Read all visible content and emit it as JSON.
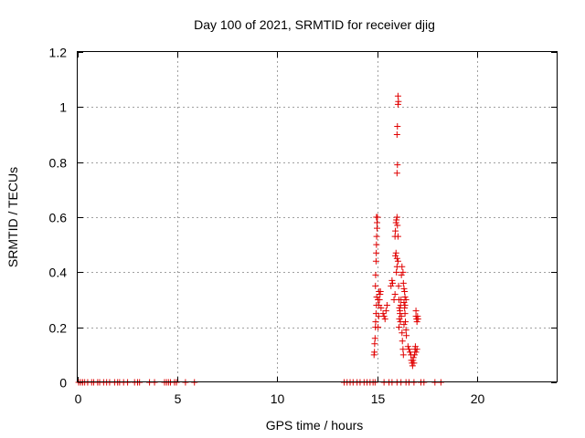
{
  "chart_data": {
    "type": "scatter",
    "title": "Day 100 of 2021, SRMTID for receiver djig",
    "xlabel": "GPS time / hours",
    "ylabel": "SRMTID / TECUs",
    "xlim": [
      0,
      24
    ],
    "ylim": [
      0,
      1.2
    ],
    "xticks": [
      0,
      5,
      10,
      15,
      20
    ],
    "xtick_labels": [
      "0",
      "5",
      "10",
      "15",
      "20"
    ],
    "yticks": [
      0,
      0.2,
      0.4,
      0.6,
      0.8,
      1,
      1.2
    ],
    "ytick_labels": [
      "0",
      "0.2",
      "0.4",
      "0.6",
      "0.8",
      "1",
      "1.2"
    ],
    "grid": true,
    "marker": "plus",
    "color": "#e00000",
    "series": [
      {
        "name": "SRMTID",
        "points": [
          [
            0.05,
            0
          ],
          [
            0.15,
            0
          ],
          [
            0.25,
            0
          ],
          [
            0.35,
            0
          ],
          [
            0.5,
            0
          ],
          [
            0.7,
            0
          ],
          [
            0.8,
            0
          ],
          [
            1.0,
            0
          ],
          [
            1.1,
            0
          ],
          [
            1.3,
            0
          ],
          [
            1.45,
            0
          ],
          [
            1.6,
            0
          ],
          [
            1.85,
            0
          ],
          [
            2.0,
            0
          ],
          [
            2.1,
            0
          ],
          [
            2.3,
            0
          ],
          [
            2.5,
            0
          ],
          [
            2.85,
            0
          ],
          [
            3.0,
            0
          ],
          [
            3.1,
            0
          ],
          [
            3.6,
            0
          ],
          [
            3.85,
            0
          ],
          [
            4.35,
            0
          ],
          [
            4.45,
            0
          ],
          [
            4.55,
            0
          ],
          [
            4.65,
            0
          ],
          [
            4.85,
            0
          ],
          [
            4.95,
            0
          ],
          [
            5.4,
            0
          ],
          [
            5.85,
            0
          ],
          [
            13.35,
            0
          ],
          [
            13.5,
            0
          ],
          [
            13.65,
            0
          ],
          [
            13.8,
            0
          ],
          [
            14.0,
            0
          ],
          [
            14.15,
            0
          ],
          [
            14.35,
            0
          ],
          [
            14.5,
            0
          ],
          [
            14.65,
            0
          ],
          [
            14.8,
            0
          ],
          [
            14.9,
            0
          ],
          [
            15.35,
            0
          ],
          [
            15.6,
            0
          ],
          [
            15.75,
            0
          ],
          [
            16.0,
            0
          ],
          [
            16.2,
            0
          ],
          [
            16.45,
            0
          ],
          [
            16.6,
            0
          ],
          [
            16.85,
            0
          ],
          [
            17.2,
            0
          ],
          [
            17.35,
            0
          ],
          [
            17.9,
            0
          ],
          [
            18.2,
            0
          ],
          [
            14.85,
            0.1
          ],
          [
            14.87,
            0.11
          ],
          [
            14.88,
            0.14
          ],
          [
            14.9,
            0.16
          ],
          [
            14.92,
            0.2
          ],
          [
            14.93,
            0.22
          ],
          [
            14.95,
            0.25
          ],
          [
            14.97,
            0.28
          ],
          [
            14.98,
            0.31
          ],
          [
            14.92,
            0.35
          ],
          [
            14.93,
            0.39
          ],
          [
            14.95,
            0.44
          ],
          [
            14.96,
            0.47
          ],
          [
            14.97,
            0.5
          ],
          [
            14.98,
            0.53
          ],
          [
            15.0,
            0.56
          ],
          [
            15.0,
            0.58
          ],
          [
            15.02,
            0.6
          ],
          [
            14.97,
            0.6
          ],
          [
            15.05,
            0.2
          ],
          [
            15.08,
            0.24
          ],
          [
            15.1,
            0.28
          ],
          [
            15.12,
            0.3
          ],
          [
            15.15,
            0.32
          ],
          [
            15.17,
            0.33
          ],
          [
            15.05,
            0.3
          ],
          [
            15.1,
            0.33
          ],
          [
            15.2,
            0.27
          ],
          [
            15.3,
            0.25
          ],
          [
            15.35,
            0.24
          ],
          [
            15.4,
            0.23
          ],
          [
            15.45,
            0.26
          ],
          [
            15.5,
            0.28
          ],
          [
            15.7,
            0.35
          ],
          [
            15.75,
            0.37
          ],
          [
            15.78,
            0.36
          ],
          [
            15.85,
            0.3
          ],
          [
            15.9,
            0.32
          ],
          [
            15.92,
            0.46
          ],
          [
            15.95,
            0.47
          ],
          [
            15.97,
            0.4
          ],
          [
            16.0,
            0.42
          ],
          [
            15.9,
            0.53
          ],
          [
            15.92,
            0.55
          ],
          [
            15.95,
            0.58
          ],
          [
            15.97,
            0.59
          ],
          [
            16.0,
            0.6
          ],
          [
            16.02,
            0.57
          ],
          [
            16.05,
            0.53
          ],
          [
            16.0,
            0.76
          ],
          [
            16.02,
            0.79
          ],
          [
            16.0,
            0.9
          ],
          [
            16.02,
            0.93
          ],
          [
            16.05,
            1.01
          ],
          [
            16.07,
            1.02
          ],
          [
            16.05,
            1.04
          ],
          [
            16.0,
            0.45
          ],
          [
            16.05,
            0.44
          ],
          [
            16.08,
            0.35
          ],
          [
            16.1,
            0.3
          ],
          [
            16.12,
            0.27
          ],
          [
            16.15,
            0.25
          ],
          [
            16.17,
            0.22
          ],
          [
            16.1,
            0.2
          ],
          [
            16.12,
            0.23
          ],
          [
            16.15,
            0.26
          ],
          [
            16.18,
            0.28
          ],
          [
            16.2,
            0.3
          ],
          [
            16.22,
            0.24
          ],
          [
            16.25,
            0.18
          ],
          [
            16.27,
            0.15
          ],
          [
            16.3,
            0.12
          ],
          [
            16.32,
            0.1
          ],
          [
            16.22,
            0.39
          ],
          [
            16.25,
            0.42
          ],
          [
            16.3,
            0.4
          ],
          [
            16.32,
            0.36
          ],
          [
            16.35,
            0.34
          ],
          [
            16.38,
            0.33
          ],
          [
            16.4,
            0.31
          ],
          [
            16.35,
            0.29
          ],
          [
            16.38,
            0.27
          ],
          [
            16.4,
            0.25
          ],
          [
            16.42,
            0.22
          ],
          [
            16.45,
            0.19
          ],
          [
            16.47,
            0.17
          ],
          [
            16.35,
            0.21
          ],
          [
            16.4,
            0.28
          ],
          [
            16.45,
            0.3
          ],
          [
            16.55,
            0.13
          ],
          [
            16.6,
            0.12
          ],
          [
            16.65,
            0.11
          ],
          [
            16.7,
            0.1
          ],
          [
            16.72,
            0.08
          ],
          [
            16.75,
            0.07
          ],
          [
            16.78,
            0.06
          ],
          [
            16.8,
            0.08
          ],
          [
            16.82,
            0.09
          ],
          [
            16.85,
            0.07
          ],
          [
            16.88,
            0.1
          ],
          [
            16.9,
            0.12
          ],
          [
            16.92,
            0.13
          ],
          [
            16.95,
            0.11
          ],
          [
            17.0,
            0.12
          ],
          [
            16.95,
            0.24
          ],
          [
            16.98,
            0.23
          ],
          [
            17.0,
            0.22
          ],
          [
            17.03,
            0.24
          ],
          [
            17.05,
            0.23
          ],
          [
            16.95,
            0.26
          ]
        ]
      }
    ]
  }
}
